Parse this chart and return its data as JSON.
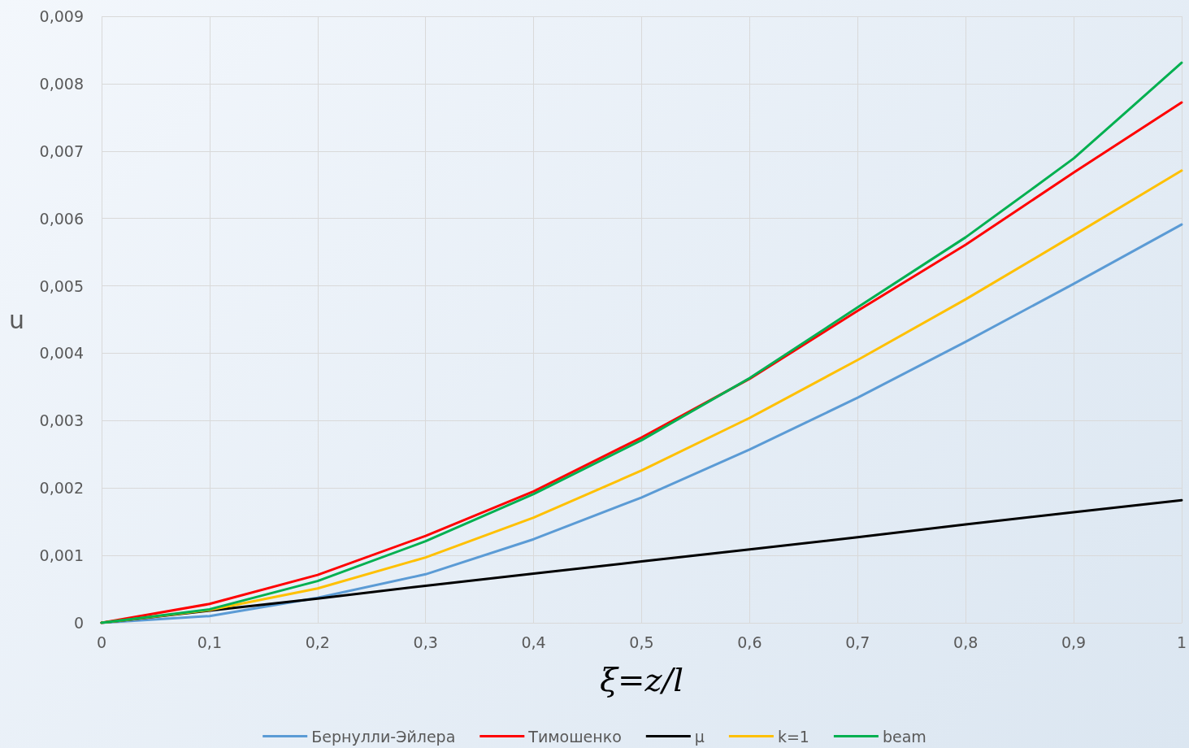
{
  "chart_data": {
    "type": "line",
    "xlabel": "ξ=z/l",
    "ylabel": "u",
    "x": [
      0,
      0.1,
      0.2,
      0.3,
      0.4,
      0.5,
      0.6,
      0.7,
      0.8,
      0.9,
      1
    ],
    "series": [
      {
        "name": "Бернулли-Эйлера",
        "color": "#5b9bd5",
        "values": [
          0,
          0.0001,
          0.00037,
          0.00072,
          0.00124,
          0.00186,
          0.00257,
          0.00334,
          0.00417,
          0.00503,
          0.00591
        ]
      },
      {
        "name": "Тимошенко",
        "color": "#ff0000",
        "values": [
          0,
          0.00028,
          0.00071,
          0.00129,
          0.00195,
          0.00275,
          0.00362,
          0.00463,
          0.00561,
          0.00668,
          0.00772
        ]
      },
      {
        "name": "μ",
        "color": "#000000",
        "values": [
          0,
          0.00018,
          0.00036,
          0.00055,
          0.00073,
          0.00091,
          0.00109,
          0.00127,
          0.00146,
          0.00164,
          0.00182
        ]
      },
      {
        "name": "k=1",
        "color": "#ffc000",
        "values": [
          0,
          0.00019,
          0.00051,
          0.00097,
          0.00156,
          0.00226,
          0.00304,
          0.0039,
          0.0048,
          0.00575,
          0.00671
        ]
      },
      {
        "name": "beam",
        "color": "#00b050",
        "x": [
          0,
          0.1,
          0.2,
          0.3,
          0.4,
          0.5,
          0.6,
          0.7,
          0.8,
          0.86,
          0.9,
          0.95,
          1
        ],
        "values": [
          0,
          0.0002,
          0.00062,
          0.00121,
          0.00191,
          0.00271,
          0.00363,
          0.00468,
          0.00572,
          0.00642,
          0.00689,
          0.0076,
          0.00831
        ]
      }
    ],
    "xlim": [
      0,
      1
    ],
    "ylim": [
      0,
      0.009
    ],
    "xticks": [
      {
        "value": 0,
        "label": "0"
      },
      {
        "value": 0.1,
        "label": "0,1"
      },
      {
        "value": 0.2,
        "label": "0,2"
      },
      {
        "value": 0.3,
        "label": "0,3"
      },
      {
        "value": 0.4,
        "label": "0,4"
      },
      {
        "value": 0.5,
        "label": "0,5"
      },
      {
        "value": 0.6,
        "label": "0,6"
      },
      {
        "value": 0.7,
        "label": "0,7"
      },
      {
        "value": 0.8,
        "label": "0,8"
      },
      {
        "value": 0.9,
        "label": "0,9"
      },
      {
        "value": 1,
        "label": "1"
      }
    ],
    "yticks": [
      {
        "value": 0,
        "label": "0"
      },
      {
        "value": 0.001,
        "label": "0,001"
      },
      {
        "value": 0.002,
        "label": "0,002"
      },
      {
        "value": 0.003,
        "label": "0,003"
      },
      {
        "value": 0.004,
        "label": "0,004"
      },
      {
        "value": 0.005,
        "label": "0,005"
      },
      {
        "value": 0.006,
        "label": "0,006"
      },
      {
        "value": 0.007,
        "label": "0,007"
      },
      {
        "value": 0.008,
        "label": "0,008"
      },
      {
        "value": 0.009,
        "label": "0,009"
      }
    ],
    "grid": true,
    "legend": "bottom",
    "marker": "none",
    "line_style": "solid"
  }
}
